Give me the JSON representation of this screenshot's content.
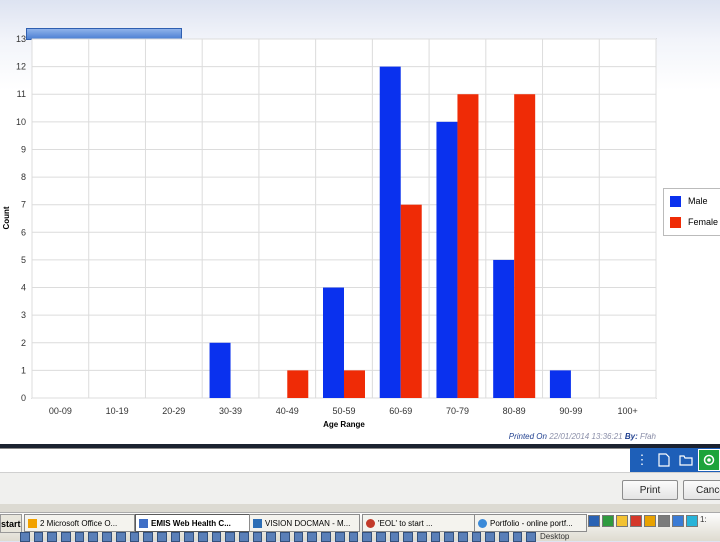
{
  "chart_data": {
    "type": "bar",
    "categories": [
      "00-09",
      "10-19",
      "20-29",
      "30-39",
      "40-49",
      "50-59",
      "60-69",
      "70-79",
      "80-89",
      "90-99",
      "100+"
    ],
    "series": [
      {
        "name": "Male",
        "values": [
          0,
          0,
          0,
          2,
          0,
          4,
          12,
          10,
          5,
          1,
          0
        ]
      },
      {
        "name": "Female",
        "values": [
          0,
          0,
          0,
          0,
          1,
          1,
          7,
          11,
          11,
          0,
          0
        ]
      }
    ],
    "xlabel": "Age Range",
    "ylabel": "Count",
    "ylim": [
      0,
      13
    ],
    "yticks": [
      0,
      1,
      2,
      3,
      4,
      5,
      6,
      7,
      8,
      9,
      10,
      11,
      12,
      13
    ],
    "grid": true,
    "legend_position": "right"
  },
  "colors": {
    "male": "#0a31ee",
    "female": "#ef2b06",
    "grid": "#dcdcdc",
    "axis": "#888888"
  },
  "footer": {
    "printed_label": "Printed On",
    "printed_value": "22/01/2014 13:36:21",
    "by_label": "By:",
    "by_value": "Ffah"
  },
  "buttons": {
    "print": "Print",
    "cancel": "Cance"
  },
  "taskbar": {
    "start": "start",
    "tasks": [
      "2 Microsoft Office O...",
      "EMIS Web Health C...",
      "VISION DOCMAN - M...",
      "'EOL' to start ...",
      "Portfolio - online portf..."
    ],
    "desktop": "Desktop",
    "clock": "1:"
  },
  "toolbox_icons": [
    "menu-dots-icon",
    "new-document-icon",
    "open-folder-icon",
    "record-icon"
  ]
}
